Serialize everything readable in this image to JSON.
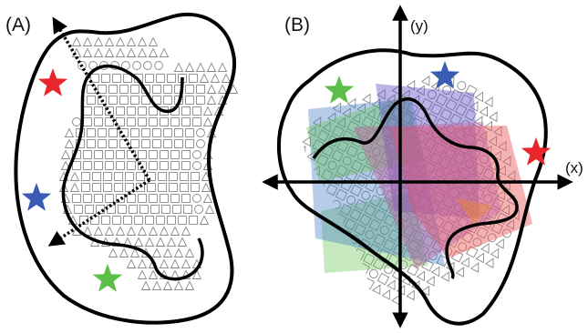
{
  "panel_a": {
    "label": "(A)"
  },
  "panel_b": {
    "label": "(B)",
    "x_axis_label": "(x)",
    "y_axis_label": "(y)"
  },
  "colors": {
    "outline": "#000000",
    "star_red": "#e8262b",
    "star_blue": "#3a5cb5",
    "star_green": "#5cbf47",
    "plane_green": "#5cbf47",
    "plane_blue": "#3f79c6",
    "plane_purple": "#5e4fc6",
    "plane_red": "#e85656",
    "plane_magenta": "#c05a9c",
    "symbol_stroke": "#8a8a8a"
  },
  "markers": [
    "red-star",
    "blue-star",
    "green-star"
  ],
  "symbols": [
    "square",
    "circle",
    "triangle"
  ]
}
